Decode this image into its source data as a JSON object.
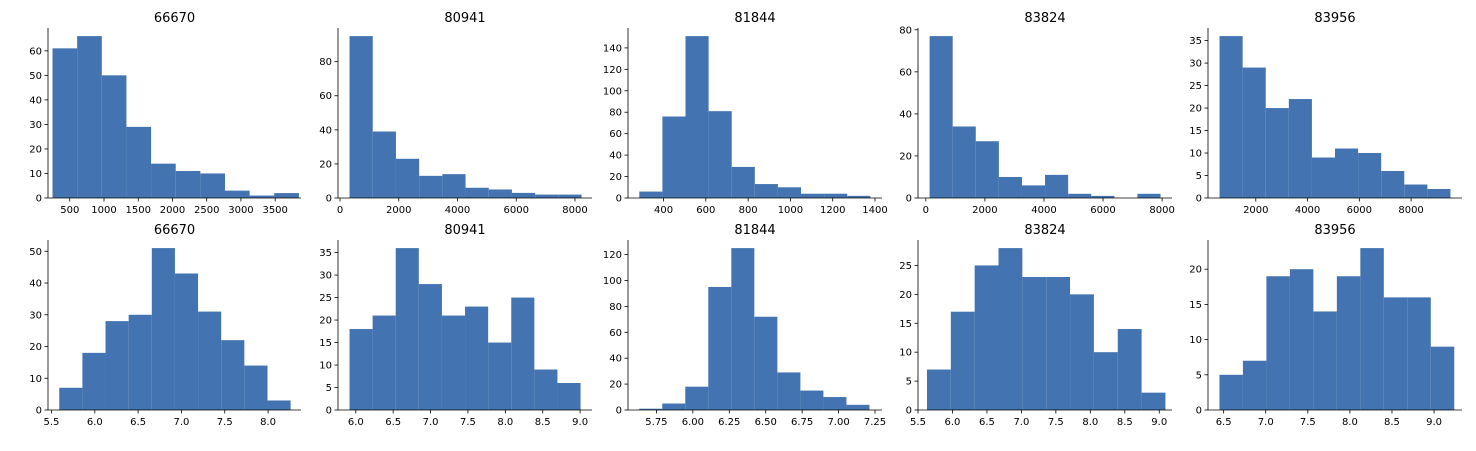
{
  "bar_color": "#4373b0",
  "chart_data": [
    {
      "type": "bar",
      "title": "66670",
      "xlim": [
        182,
        3877
      ],
      "ylim": [
        0,
        69.3
      ],
      "edges": [
        247.84,
        607.72,
        967.6,
        1327.48,
        1687.36,
        2047.24,
        2407.12,
        2767.0,
        3126.88,
        3486.76,
        3846.64
      ],
      "values": [
        61,
        66,
        50,
        29,
        14,
        11,
        10,
        3,
        1,
        2
      ],
      "xticks": [
        500,
        1000,
        1500,
        2000,
        2500,
        3000,
        3500
      ],
      "xtick_labels": [
        "500",
        "1000",
        "1500",
        "2000",
        "2500",
        "3000",
        "3500"
      ],
      "yticks": [
        0,
        10,
        20,
        30,
        40,
        50,
        60
      ],
      "ytick_labels": [
        "0",
        "10",
        "20",
        "30",
        "40",
        "50",
        "60"
      ]
    },
    {
      "type": "bar",
      "title": "80941",
      "xlim": [
        -69,
        8580
      ],
      "ylim": [
        0,
        99.75
      ],
      "edges": [
        324.0,
        1114.0,
        1904.0,
        2694.0,
        3484.0,
        4274.0,
        5064.0,
        5854.0,
        6644.0,
        7434.0,
        8224.0
      ],
      "values": [
        95,
        39,
        23,
        13,
        14,
        6,
        5,
        3,
        2,
        2
      ],
      "xticks": [
        0,
        2000,
        4000,
        6000,
        8000
      ],
      "xtick_labels": [
        "0",
        "2000",
        "4000",
        "6000",
        "8000"
      ],
      "yticks": [
        0,
        20,
        40,
        60,
        80
      ],
      "ytick_labels": [
        "0",
        "20",
        "40",
        "60",
        "80"
      ]
    },
    {
      "type": "bar",
      "title": "81844",
      "xlim": [
        232,
        1433
      ],
      "ylim": [
        0,
        158.55
      ],
      "edges": [
        285.4,
        394.65,
        503.9,
        613.15,
        722.4,
        831.65,
        940.9,
        1050.15,
        1159.4,
        1268.65,
        1377.9
      ],
      "values": [
        6,
        76,
        151,
        81,
        29,
        13,
        10,
        4,
        4,
        2
      ],
      "xticks": [
        400,
        600,
        800,
        1000,
        1200,
        1400
      ],
      "xtick_labels": [
        "400",
        "600",
        "800",
        "1000",
        "1200",
        "1400"
      ],
      "yticks": [
        0,
        20,
        40,
        60,
        80,
        100,
        120,
        140
      ],
      "ytick_labels": [
        "0",
        "20",
        "40",
        "60",
        "80",
        "100",
        "120",
        "140"
      ]
    },
    {
      "type": "bar",
      "title": "83824",
      "xlim": [
        -265,
        8335
      ],
      "ylim": [
        0,
        80.85
      ],
      "edges": [
        127.0,
        909.0,
        1691.0,
        2473.0,
        3255.0,
        4037.0,
        4819.0,
        5601.0,
        6383.0,
        7165.0,
        7947.0
      ],
      "values": [
        77,
        34,
        27,
        10,
        6,
        11,
        2,
        1,
        0,
        2
      ],
      "xticks": [
        0,
        2000,
        4000,
        6000,
        8000
      ],
      "xtick_labels": [
        "0",
        "2000",
        "4000",
        "6000",
        "8000"
      ],
      "yticks": [
        0,
        20,
        40,
        60,
        80
      ],
      "ytick_labels": [
        "0",
        "20",
        "40",
        "60",
        "80"
      ]
    },
    {
      "type": "bar",
      "title": "83956",
      "xlim": [
        153,
        9968
      ],
      "ylim": [
        0,
        37.8
      ],
      "edges": [
        599.14,
        1491.41,
        2383.68,
        3275.95,
        4168.22,
        5060.49,
        5952.76,
        6845.03,
        7737.3,
        8629.57,
        9521.84
      ],
      "values": [
        36,
        29,
        20,
        22,
        9,
        11,
        10,
        6,
        3,
        2
      ],
      "xticks": [
        2000,
        4000,
        6000,
        8000
      ],
      "xtick_labels": [
        "2000",
        "4000",
        "6000",
        "8000"
      ],
      "yticks": [
        0,
        5,
        10,
        15,
        20,
        25,
        30,
        35
      ],
      "ytick_labels": [
        "0",
        "5",
        "10",
        "15",
        "20",
        "25",
        "30",
        "35"
      ]
    },
    {
      "type": "bar",
      "title": "66670",
      "xlim": [
        5.46,
        8.38
      ],
      "ylim": [
        0,
        53.55
      ],
      "edges": [
        5.59,
        5.857,
        6.124,
        6.391,
        6.658,
        6.925,
        7.192,
        7.459,
        7.726,
        7.993,
        8.26
      ],
      "values": [
        7,
        18,
        28,
        30,
        51,
        43,
        31,
        22,
        14,
        3
      ],
      "xticks": [
        5.5,
        6.0,
        6.5,
        7.0,
        7.5,
        8.0
      ],
      "xtick_labels": [
        "5.5",
        "6.0",
        "6.5",
        "7.0",
        "7.5",
        "8.0"
      ],
      "yticks": [
        0,
        10,
        20,
        30,
        40,
        50
      ],
      "ytick_labels": [
        "0",
        "10",
        "20",
        "30",
        "40",
        "50"
      ]
    },
    {
      "type": "bar",
      "title": "80941",
      "xlim": [
        5.762,
        9.159
      ],
      "ylim": [
        0,
        37.8
      ],
      "edges": [
        5.916,
        6.225,
        6.534,
        6.843,
        7.152,
        7.461,
        7.77,
        8.079,
        8.388,
        8.697,
        9.006
      ],
      "values": [
        18,
        21,
        36,
        28,
        21,
        23,
        15,
        25,
        9,
        6
      ],
      "xticks": [
        6.0,
        6.5,
        7.0,
        7.5,
        8.0,
        8.5,
        9.0
      ],
      "xtick_labels": [
        "6.0",
        "6.5",
        "7.0",
        "7.5",
        "8.0",
        "8.5",
        "9.0"
      ],
      "yticks": [
        0,
        5,
        10,
        15,
        20,
        25,
        30,
        35
      ],
      "ytick_labels": [
        "0",
        "5",
        "10",
        "15",
        "20",
        "25",
        "30",
        "35"
      ]
    },
    {
      "type": "bar",
      "title": "81844",
      "xlim": [
        5.555,
        7.298
      ],
      "ylim": [
        0,
        131.25
      ],
      "edges": [
        5.632,
        5.79,
        5.948,
        6.106,
        6.264,
        6.422,
        6.58,
        6.738,
        6.896,
        7.054,
        7.212
      ],
      "values": [
        1,
        5,
        18,
        95,
        125,
        72,
        29,
        15,
        10,
        4
      ],
      "xticks": [
        5.75,
        6.0,
        6.25,
        6.5,
        6.75,
        7.0,
        7.25
      ],
      "xtick_labels": [
        "5.75",
        "6.00",
        "6.25",
        "6.50",
        "6.75",
        "7.00",
        "7.25"
      ],
      "yticks": [
        0,
        20,
        40,
        60,
        80,
        100,
        120
      ],
      "ytick_labels": [
        "0",
        "20",
        "40",
        "60",
        "80",
        "100",
        "120"
      ]
    },
    {
      "type": "bar",
      "title": "83824",
      "xlim": [
        5.5,
        9.185
      ],
      "ylim": [
        0,
        29.4
      ],
      "edges": [
        5.63,
        5.976,
        6.322,
        6.668,
        7.014,
        7.36,
        7.706,
        8.052,
        8.398,
        8.744,
        9.09
      ],
      "values": [
        7,
        17,
        25,
        28,
        23,
        23,
        20,
        10,
        14,
        3
      ],
      "xticks": [
        5.5,
        6.0,
        6.5,
        7.0,
        7.5,
        8.0,
        8.5,
        9.0
      ],
      "xtick_labels": [
        "5.5",
        "6.0",
        "6.5",
        "7.0",
        "7.5",
        "8.0",
        "8.5",
        "9.0"
      ],
      "yticks": [
        0,
        5,
        10,
        15,
        20,
        25
      ],
      "ytick_labels": [
        "0",
        "5",
        "10",
        "15",
        "20",
        "25"
      ]
    },
    {
      "type": "bar",
      "title": "83956",
      "xlim": [
        6.314,
        9.332
      ],
      "ylim": [
        0,
        24.15
      ],
      "edges": [
        6.45,
        6.729,
        7.008,
        7.287,
        7.566,
        7.845,
        8.124,
        8.403,
        8.682,
        8.961,
        9.24
      ],
      "values": [
        5,
        7,
        19,
        20,
        14,
        19,
        23,
        16,
        16,
        9
      ],
      "xticks": [
        6.5,
        7.0,
        7.5,
        8.0,
        8.5,
        9.0
      ],
      "xtick_labels": [
        "6.5",
        "7.0",
        "7.5",
        "8.0",
        "8.5",
        "9.0"
      ],
      "yticks": [
        0,
        5,
        10,
        15,
        20
      ],
      "ytick_labels": [
        "0",
        "5",
        "10",
        "15",
        "20"
      ]
    }
  ]
}
